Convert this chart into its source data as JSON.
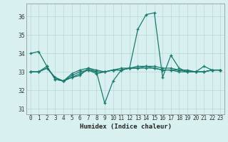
{
  "xlabel": "Humidex (Indice chaleur)",
  "bg_color": "#d9f0f0",
  "grid_color": "#b8d8d8",
  "line_color": "#1a7a6e",
  "xlim": [
    -0.5,
    23.5
  ],
  "ylim": [
    30.7,
    36.7
  ],
  "yticks": [
    31,
    32,
    33,
    34,
    35,
    36
  ],
  "xticks": [
    0,
    1,
    2,
    3,
    4,
    5,
    6,
    7,
    8,
    9,
    10,
    11,
    12,
    13,
    14,
    15,
    16,
    17,
    18,
    19,
    20,
    21,
    22,
    23
  ],
  "series1": [
    34.0,
    34.1,
    33.3,
    32.6,
    32.5,
    32.7,
    32.8,
    33.2,
    33.0,
    31.3,
    32.5,
    33.1,
    33.2,
    35.3,
    36.1,
    36.2,
    32.7,
    33.9,
    33.2,
    33.0,
    33.0,
    33.3,
    33.1,
    33.1
  ],
  "series2": [
    33.0,
    33.0,
    33.3,
    32.6,
    32.5,
    32.7,
    32.9,
    33.1,
    32.9,
    33.0,
    33.1,
    33.1,
    33.2,
    33.2,
    33.2,
    33.2,
    33.1,
    33.1,
    33.0,
    33.0,
    33.0,
    33.0,
    33.1,
    33.1
  ],
  "series3": [
    33.0,
    33.0,
    33.2,
    32.7,
    32.5,
    32.8,
    33.0,
    33.1,
    33.0,
    33.0,
    33.1,
    33.1,
    33.2,
    33.2,
    33.3,
    33.2,
    33.1,
    33.1,
    33.1,
    33.0,
    33.0,
    33.0,
    33.1,
    33.1
  ],
  "series4": [
    33.0,
    33.0,
    33.2,
    32.7,
    32.5,
    32.9,
    33.1,
    33.2,
    33.1,
    33.0,
    33.1,
    33.2,
    33.2,
    33.3,
    33.3,
    33.3,
    33.2,
    33.2,
    33.1,
    33.1,
    33.0,
    33.0,
    33.1,
    33.1
  ]
}
